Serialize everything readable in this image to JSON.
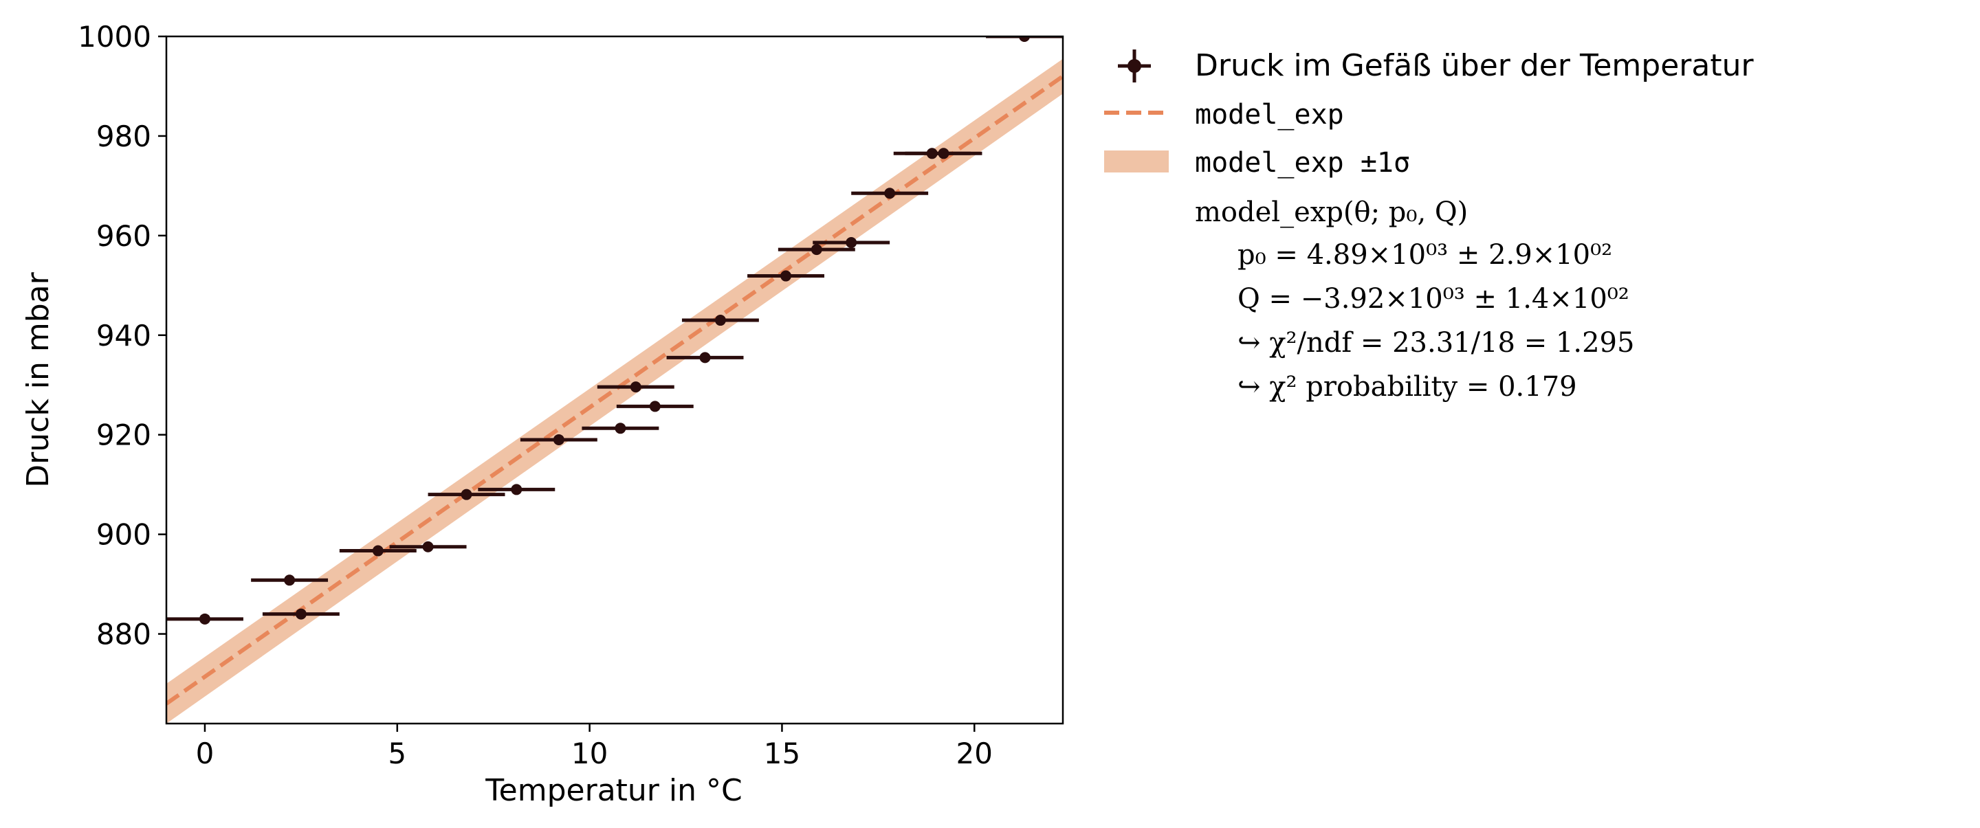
{
  "colors": {
    "points": "#2b0d0d",
    "model": "#e8875a",
    "band": "#f0c3a6",
    "axis": "#000000",
    "background": "#ffffff"
  },
  "chart_data": {
    "type": "scatter",
    "xlabel": "Temperatur in °C",
    "ylabel": "Druck in mbar",
    "xlim": [
      -1.0,
      22.3
    ],
    "ylim": [
      862,
      1000
    ],
    "xticks": [
      0,
      5,
      10,
      15,
      20
    ],
    "yticks": [
      880,
      900,
      920,
      940,
      960,
      980,
      1000
    ],
    "grid": false,
    "legend_position": "outside-right",
    "series": [
      {
        "name": "Druck im Gefäß über der Temperatur",
        "kind": "errorbar",
        "x_error": 1.0,
        "points": [
          {
            "x": 0.0,
            "y": 883.0
          },
          {
            "x": 2.2,
            "y": 890.8
          },
          {
            "x": 2.5,
            "y": 884.0
          },
          {
            "x": 4.5,
            "y": 896.7
          },
          {
            "x": 5.8,
            "y": 897.5
          },
          {
            "x": 6.8,
            "y": 908.0
          },
          {
            "x": 8.1,
            "y": 909.0
          },
          {
            "x": 9.2,
            "y": 919.0
          },
          {
            "x": 10.8,
            "y": 921.3
          },
          {
            "x": 11.2,
            "y": 929.6
          },
          {
            "x": 11.7,
            "y": 925.7
          },
          {
            "x": 13.0,
            "y": 935.5
          },
          {
            "x": 13.4,
            "y": 943.0
          },
          {
            "x": 15.1,
            "y": 951.9
          },
          {
            "x": 15.9,
            "y": 957.2
          },
          {
            "x": 16.8,
            "y": 958.6
          },
          {
            "x": 17.8,
            "y": 968.5
          },
          {
            "x": 18.9,
            "y": 976.5
          },
          {
            "x": 19.2,
            "y": 976.5
          },
          {
            "x": 21.3,
            "y": 1000.0
          }
        ]
      },
      {
        "name": "model_exp",
        "kind": "line",
        "style": "dashed",
        "x": [
          -1.0,
          22.3
        ],
        "y": [
          866.0,
          992.0
        ]
      },
      {
        "name": "model_exp ±1σ",
        "kind": "band",
        "x": [
          -1.0,
          22.3
        ],
        "y_lower": [
          862.0,
          988.5
        ],
        "y_upper": [
          870.0,
          995.5
        ]
      }
    ],
    "annotations": {
      "model_signature": "model_exp(θ; p₀, Q)",
      "param_p0": "p₀ = 4.89×10⁰³ ± 2.9×10⁰²",
      "param_Q": "Q = −3.92×10⁰³ ± 1.4×10⁰²",
      "chi2_ndf": "↪ χ²/ndf = 23.31/18 = 1.295",
      "chi2_prob": "↪ χ² probability = 0.179"
    }
  }
}
